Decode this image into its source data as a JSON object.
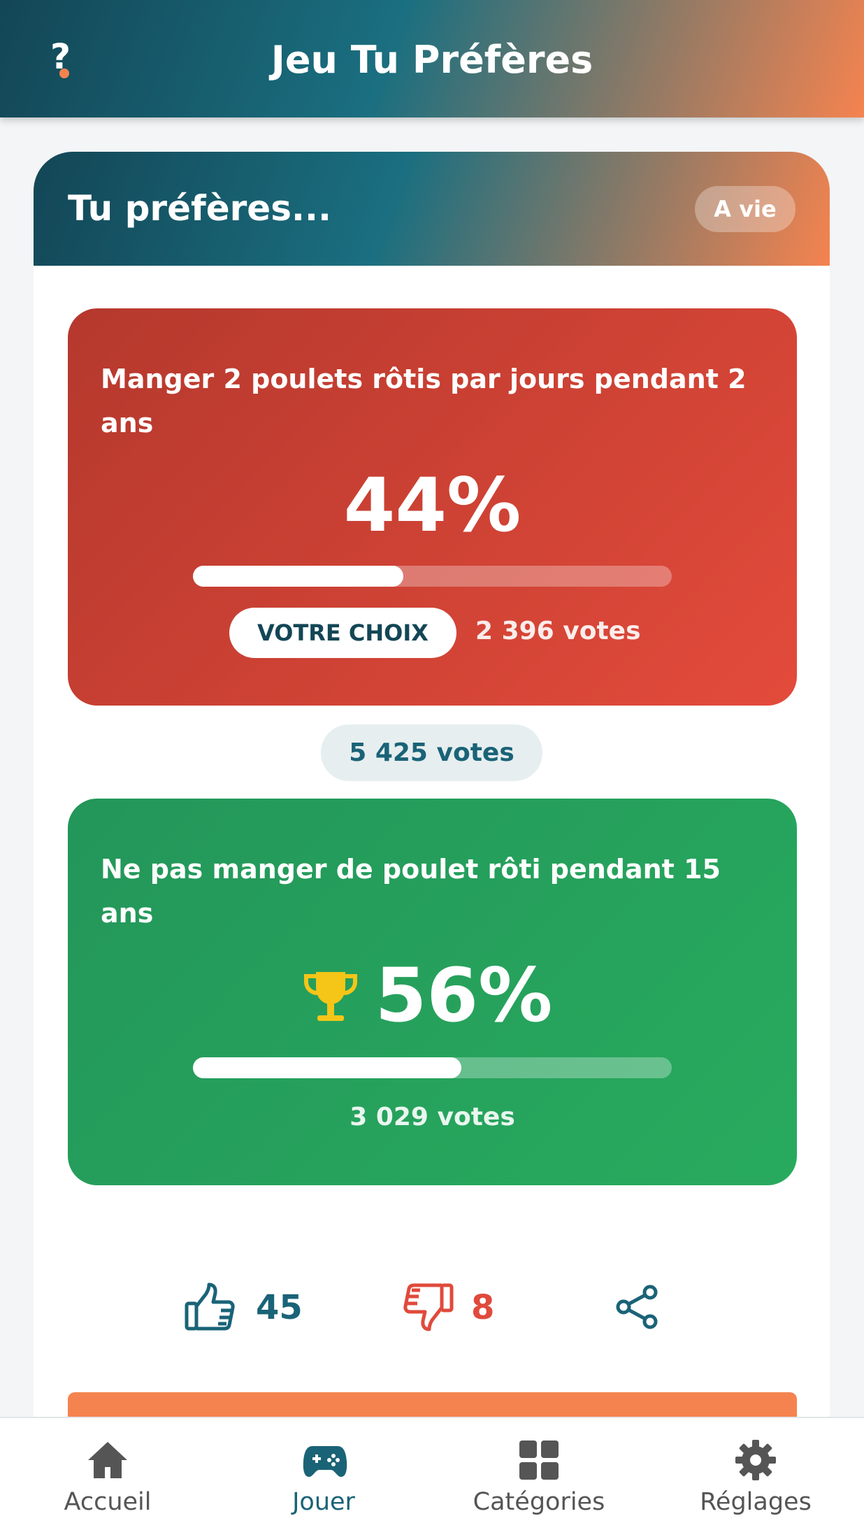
{
  "header": {
    "help": "?",
    "title": "Jeu Tu Préfères"
  },
  "card": {
    "title": "Tu préfères...",
    "badge": "A vie",
    "total_votes": "5 425 votes",
    "options": [
      {
        "text": "Manger 2 poulets rôtis par jours pendant 2 ans",
        "percent": 44,
        "percent_label": "44%",
        "choice_label": "VOTRE CHOIX",
        "votes": "2 396 votes"
      },
      {
        "text": "Ne pas manger de poulet rôti pendant 15 ans",
        "percent": 56,
        "percent_label": "56%",
        "votes": "3 029 votes"
      }
    ],
    "likes": 45,
    "dislikes": 8
  },
  "nav": {
    "active": 1,
    "items": [
      {
        "label": "Accueil"
      },
      {
        "label": "Jouer"
      },
      {
        "label": "Catégories"
      },
      {
        "label": "Réglages"
      }
    ]
  }
}
